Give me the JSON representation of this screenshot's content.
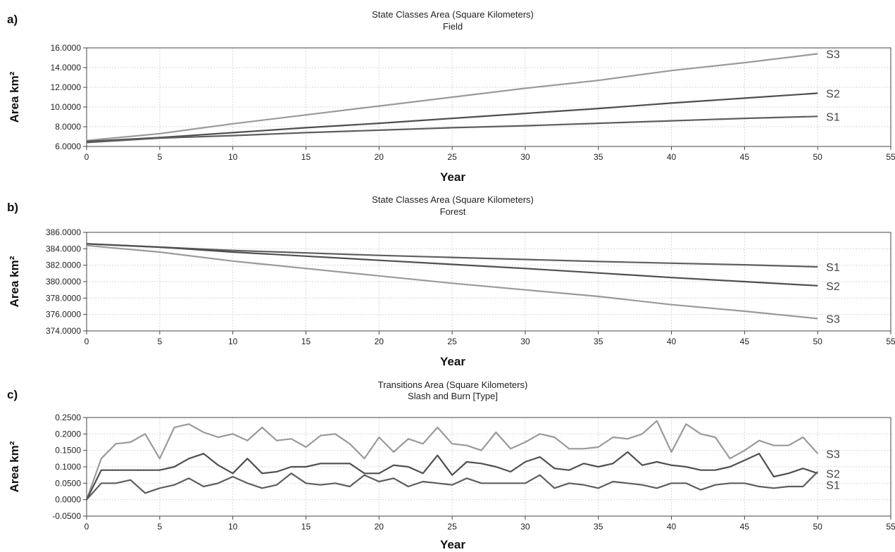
{
  "chart_data": [
    {
      "type": "line",
      "panel_letter": "a)",
      "title": "State Classes Area (Square Kilometers)",
      "subtitle": "Field",
      "xlabel": "Year",
      "ylabel": "Area km²",
      "xlim": [
        0,
        55
      ],
      "ylim": [
        6,
        16
      ],
      "xticks": [
        "0",
        "5",
        "10",
        "15",
        "20",
        "25",
        "30",
        "35",
        "40",
        "45",
        "50",
        "55"
      ],
      "yticks": [
        "6.0000",
        "8.0000",
        "10.0000",
        "12.0000",
        "14.0000",
        "16.0000"
      ],
      "grid": true,
      "x": [
        0,
        5,
        10,
        15,
        20,
        25,
        30,
        35,
        40,
        45,
        50
      ],
      "series": [
        {
          "name": "S3",
          "color": "#9a9a9a",
          "values": [
            6.6,
            7.3,
            8.3,
            9.2,
            10.1,
            11.0,
            11.9,
            12.7,
            13.7,
            14.5,
            15.4
          ]
        },
        {
          "name": "S2",
          "color": "#4f4f4f",
          "values": [
            6.5,
            6.9,
            7.4,
            7.9,
            8.35,
            8.85,
            9.35,
            9.85,
            10.4,
            10.9,
            11.4
          ]
        },
        {
          "name": "S1",
          "color": "#5e5e5e",
          "values": [
            6.4,
            6.85,
            7.1,
            7.4,
            7.65,
            7.9,
            8.1,
            8.35,
            8.6,
            8.85,
            9.05
          ]
        }
      ]
    },
    {
      "type": "line",
      "panel_letter": "b)",
      "title": "State Classes Area (Square Kilometers)",
      "subtitle": "Forest",
      "xlabel": "Year",
      "ylabel": "Area km²",
      "xlim": [
        0,
        55
      ],
      "ylim": [
        374,
        386
      ],
      "xticks": [
        "0",
        "5",
        "10",
        "15",
        "20",
        "25",
        "30",
        "35",
        "40",
        "45",
        "50",
        "55"
      ],
      "yticks": [
        "374.0000",
        "376.0000",
        "378.0000",
        "380.0000",
        "382.0000",
        "384.0000",
        "386.0000"
      ],
      "grid": true,
      "x": [
        0,
        5,
        10,
        15,
        20,
        25,
        30,
        35,
        40,
        45,
        50
      ],
      "series": [
        {
          "name": "S1",
          "color": "#5e5e5e",
          "values": [
            384.6,
            384.2,
            383.8,
            383.5,
            383.2,
            382.95,
            382.7,
            382.45,
            382.25,
            382.05,
            381.8
          ]
        },
        {
          "name": "S2",
          "color": "#4f4f4f",
          "values": [
            384.6,
            384.2,
            383.6,
            383.1,
            382.6,
            382.1,
            381.6,
            381.05,
            380.5,
            380.0,
            379.5
          ]
        },
        {
          "name": "S3",
          "color": "#9a9a9a",
          "values": [
            384.4,
            383.6,
            382.5,
            381.6,
            380.7,
            379.8,
            379.0,
            378.2,
            377.2,
            376.4,
            375.5
          ]
        }
      ]
    },
    {
      "type": "line",
      "panel_letter": "c)",
      "title": "Transitions Area (Square Kilometers)",
      "subtitle": "Slash and Burn [Type]",
      "xlabel": "Year",
      "ylabel": "Area km²",
      "xlim": [
        0,
        55
      ],
      "ylim": [
        -0.05,
        0.25
      ],
      "xticks": [
        "0",
        "5",
        "10",
        "15",
        "20",
        "25",
        "30",
        "35",
        "40",
        "45",
        "50",
        "55"
      ],
      "yticks": [
        "-0.0500",
        "0.0000",
        "0.0500",
        "0.1000",
        "0.1500",
        "0.2000",
        "0.2500"
      ],
      "grid": true,
      "x": [
        0,
        1,
        2,
        3,
        4,
        5,
        6,
        7,
        8,
        9,
        10,
        11,
        12,
        13,
        14,
        15,
        16,
        17,
        18,
        19,
        20,
        21,
        22,
        23,
        24,
        25,
        26,
        27,
        28,
        29,
        30,
        31,
        32,
        33,
        34,
        35,
        36,
        37,
        38,
        39,
        40,
        41,
        42,
        43,
        44,
        45,
        46,
        47,
        48,
        49,
        50
      ],
      "series": [
        {
          "name": "S3",
          "color": "#9a9a9a",
          "values": [
            0.0,
            0.125,
            0.17,
            0.175,
            0.2,
            0.125,
            0.22,
            0.23,
            0.205,
            0.19,
            0.2,
            0.18,
            0.22,
            0.18,
            0.185,
            0.16,
            0.195,
            0.2,
            0.17,
            0.125,
            0.19,
            0.145,
            0.185,
            0.17,
            0.22,
            0.17,
            0.165,
            0.15,
            0.205,
            0.155,
            0.175,
            0.2,
            0.19,
            0.155,
            0.155,
            0.16,
            0.19,
            0.185,
            0.2,
            0.24,
            0.145,
            0.23,
            0.2,
            0.19,
            0.125,
            0.15,
            0.18,
            0.165,
            0.165,
            0.19,
            0.14
          ]
        },
        {
          "name": "S2",
          "color": "#4f4f4f",
          "values": [
            0.0,
            0.09,
            0.09,
            0.09,
            0.09,
            0.09,
            0.1,
            0.125,
            0.14,
            0.105,
            0.08,
            0.125,
            0.08,
            0.085,
            0.1,
            0.1,
            0.11,
            0.11,
            0.11,
            0.08,
            0.08,
            0.105,
            0.1,
            0.08,
            0.135,
            0.075,
            0.115,
            0.11,
            0.1,
            0.085,
            0.115,
            0.13,
            0.095,
            0.09,
            0.11,
            0.1,
            0.11,
            0.145,
            0.105,
            0.115,
            0.105,
            0.1,
            0.09,
            0.09,
            0.1,
            0.12,
            0.14,
            0.07,
            0.08,
            0.095,
            0.08
          ]
        },
        {
          "name": "S1",
          "color": "#5e5e5e",
          "values": [
            0.0,
            0.05,
            0.05,
            0.06,
            0.02,
            0.035,
            0.045,
            0.065,
            0.04,
            0.05,
            0.07,
            0.05,
            0.035,
            0.045,
            0.08,
            0.05,
            0.045,
            0.05,
            0.04,
            0.075,
            0.055,
            0.065,
            0.04,
            0.055,
            0.05,
            0.045,
            0.065,
            0.05,
            0.05,
            0.05,
            0.05,
            0.075,
            0.035,
            0.05,
            0.045,
            0.035,
            0.055,
            0.05,
            0.045,
            0.035,
            0.05,
            0.05,
            0.03,
            0.045,
            0.05,
            0.05,
            0.04,
            0.035,
            0.04,
            0.04,
            0.085
          ]
        }
      ]
    }
  ]
}
